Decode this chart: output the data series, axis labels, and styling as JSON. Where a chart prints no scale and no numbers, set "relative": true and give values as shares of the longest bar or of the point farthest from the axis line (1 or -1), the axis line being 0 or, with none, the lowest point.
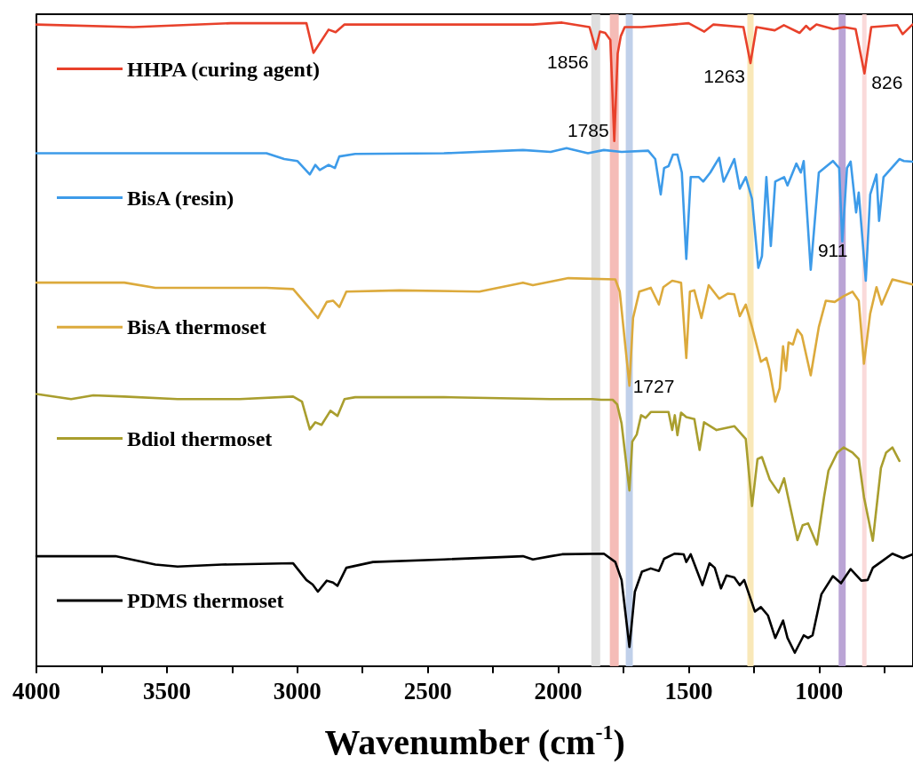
{
  "chart_data": {
    "type": "line",
    "relative": true,
    "xlabel": "Wavenumber (cm$^{-1}$)",
    "xlim": [
      4000,
      640
    ],
    "xticks": [
      4000,
      {
        "value": 3750,
        "label": null
      },
      3500,
      {
        "value": 3250,
        "label": null
      },
      3000,
      {
        "value": 2750,
        "label": null
      },
      2500,
      {
        "value": 2250,
        "label": null
      },
      2000,
      {
        "value": 1750,
        "label": null
      },
      1500,
      {
        "value": 1250,
        "label": null
      },
      1000,
      {
        "value": 750,
        "label": null
      }
    ],
    "tick_labels": "x",
    "grid": false,
    "legend": "left",
    "line_style": "solid",
    "marker": "none",
    "series": [
      {
        "name": "HHPA (curing agent)",
        "color": "#e8412b",
        "x": [
          4000,
          3629,
          3255,
          2965,
          2938,
          2880,
          2853,
          2819,
          2097,
          1985,
          1880,
          1856,
          1840,
          1820,
          1800,
          1791,
          1785,
          1779,
          1772,
          1760,
          1745,
          1680,
          1500,
          1440,
          1405,
          1290,
          1263,
          1240,
          1170,
          1135,
          1075,
          1050,
          1035,
          1010,
          945,
          905,
          860,
          826,
          800,
          700,
          680,
          642
        ],
        "values": [
          0.997,
          0.993,
          0.999,
          0.999,
          0.953,
          0.989,
          0.985,
          0.997,
          0.997,
          1.0,
          0.993,
          0.959,
          0.986,
          0.984,
          0.973,
          0.88,
          0.816,
          0.88,
          0.952,
          0.979,
          0.993,
          0.993,
          0.999,
          0.986,
          0.997,
          0.993,
          0.937,
          0.993,
          0.988,
          0.996,
          0.984,
          0.995,
          0.989,
          0.997,
          0.99,
          0.993,
          0.99,
          0.921,
          0.993,
          0.996,
          0.982,
          0.997
        ]
      },
      {
        "name": "BisA (resin)",
        "color": "#3d9be9",
        "x": [
          4000,
          3118,
          3050,
          3000,
          2952,
          2931,
          2914,
          2880,
          2856,
          2839,
          2778,
          2438,
          2135,
          2029,
          1968,
          1886,
          1825,
          1757,
          1655,
          1628,
          1607,
          1594,
          1577,
          1560,
          1543,
          1526,
          1509,
          1492,
          1461,
          1444,
          1417,
          1383,
          1366,
          1349,
          1325,
          1304,
          1281,
          1257,
          1233,
          1219,
          1202,
          1185,
          1168,
          1134,
          1121,
          1087,
          1070,
          1059,
          1032,
          1001,
          947,
          923,
          911,
          893,
          879,
          858,
          848,
          821,
          804,
          780,
          770,
          753,
          692,
          675,
          641
        ],
        "values": [
          0.797,
          0.797,
          0.788,
          0.785,
          0.764,
          0.779,
          0.771,
          0.779,
          0.774,
          0.792,
          0.796,
          0.797,
          0.802,
          0.799,
          0.805,
          0.797,
          0.802,
          0.799,
          0.801,
          0.788,
          0.733,
          0.774,
          0.777,
          0.795,
          0.795,
          0.767,
          0.633,
          0.76,
          0.76,
          0.753,
          0.767,
          0.79,
          0.753,
          0.767,
          0.788,
          0.742,
          0.76,
          0.726,
          0.619,
          0.637,
          0.76,
          0.653,
          0.753,
          0.76,
          0.747,
          0.781,
          0.767,
          0.785,
          0.616,
          0.767,
          0.785,
          0.774,
          0.66,
          0.774,
          0.784,
          0.705,
          0.736,
          0.599,
          0.733,
          0.764,
          0.692,
          0.76,
          0.788,
          0.785,
          0.784
        ]
      },
      {
        "name": "BisA thermoset",
        "color": "#dcaa3c",
        "x": [
          4000,
          3663,
          3544,
          3118,
          3016,
          2965,
          2921,
          2887,
          2863,
          2839,
          2812,
          2608,
          2302,
          2135,
          2097,
          1961,
          1781,
          1764,
          1727,
          1713,
          1689,
          1645,
          1614,
          1597,
          1563,
          1529,
          1509,
          1495,
          1478,
          1451,
          1423,
          1383,
          1349,
          1325,
          1304,
          1281,
          1257,
          1223,
          1202,
          1189,
          1168,
          1151,
          1138,
          1127,
          1117,
          1100,
          1083,
          1066,
          1032,
          1001,
          974,
          940,
          906,
          872,
          848,
          828,
          804,
          780,
          760,
          719,
          641
        ],
        "values": [
          0.596,
          0.596,
          0.588,
          0.588,
          0.586,
          0.562,
          0.541,
          0.566,
          0.568,
          0.558,
          0.582,
          0.584,
          0.582,
          0.596,
          0.592,
          0.603,
          0.601,
          0.582,
          0.436,
          0.541,
          0.582,
          0.588,
          0.562,
          0.589,
          0.599,
          0.596,
          0.479,
          0.582,
          0.584,
          0.541,
          0.592,
          0.571,
          0.579,
          0.578,
          0.544,
          0.562,
          0.527,
          0.473,
          0.479,
          0.459,
          0.411,
          0.432,
          0.497,
          0.459,
          0.503,
          0.5,
          0.523,
          0.514,
          0.452,
          0.527,
          0.568,
          0.566,
          0.575,
          0.582,
          0.568,
          0.47,
          0.548,
          0.589,
          0.562,
          0.601,
          0.593
        ]
      },
      {
        "name": "Bdiol thermoset",
        "color": "#a99e2e",
        "x": [
          4000,
          3867,
          3782,
          3663,
          3459,
          3221,
          3016,
          2982,
          2952,
          2931,
          2907,
          2873,
          2846,
          2819,
          2778,
          2438,
          2029,
          1869,
          1835,
          1791,
          1774,
          1757,
          1727,
          1716,
          1699,
          1682,
          1665,
          1645,
          1611,
          1577,
          1563,
          1553,
          1543,
          1529,
          1509,
          1478,
          1458,
          1441,
          1393,
          1325,
          1281,
          1257,
          1236,
          1219,
          1189,
          1155,
          1134,
          1121,
          1083,
          1063,
          1042,
          1008,
          981,
          964,
          930,
          906,
          872,
          848,
          828,
          794,
          763,
          743,
          719,
          692
        ],
        "values": [
          0.423,
          0.415,
          0.421,
          0.419,
          0.415,
          0.415,
          0.419,
          0.411,
          0.368,
          0.379,
          0.375,
          0.397,
          0.389,
          0.415,
          0.418,
          0.418,
          0.415,
          0.415,
          0.414,
          0.414,
          0.407,
          0.377,
          0.273,
          0.349,
          0.36,
          0.39,
          0.386,
          0.395,
          0.395,
          0.395,
          0.367,
          0.39,
          0.359,
          0.394,
          0.387,
          0.384,
          0.336,
          0.379,
          0.367,
          0.373,
          0.353,
          0.249,
          0.322,
          0.325,
          0.29,
          0.27,
          0.292,
          0.267,
          0.196,
          0.219,
          0.222,
          0.189,
          0.263,
          0.304,
          0.332,
          0.34,
          0.332,
          0.322,
          0.263,
          0.195,
          0.308,
          0.332,
          0.34,
          0.319
        ]
      },
      {
        "name": "PDMS thermoset",
        "color": "#000000",
        "x": [
          4000,
          3697,
          3544,
          3459,
          3289,
          3016,
          2965,
          2941,
          2921,
          2887,
          2863,
          2846,
          2812,
          2710,
          2438,
          2135,
          2097,
          2029,
          1985,
          1825,
          1781,
          1757,
          1727,
          1706,
          1679,
          1645,
          1614,
          1594,
          1553,
          1519,
          1509,
          1492,
          1447,
          1420,
          1400,
          1376,
          1355,
          1325,
          1304,
          1287,
          1246,
          1223,
          1196,
          1168,
          1138,
          1121,
          1093,
          1059,
          1042,
          1025,
          991,
          947,
          916,
          879,
          838,
          814,
          794,
          763,
          719,
          678,
          641
        ],
        "values": [
          0.171,
          0.171,
          0.158,
          0.155,
          0.158,
          0.16,
          0.134,
          0.127,
          0.116,
          0.133,
          0.13,
          0.125,
          0.153,
          0.162,
          0.166,
          0.171,
          0.166,
          0.171,
          0.174,
          0.175,
          0.162,
          0.134,
          0.03,
          0.116,
          0.147,
          0.152,
          0.148,
          0.167,
          0.175,
          0.174,
          0.162,
          0.174,
          0.126,
          0.16,
          0.153,
          0.121,
          0.141,
          0.138,
          0.126,
          0.134,
          0.085,
          0.092,
          0.079,
          0.044,
          0.071,
          0.044,
          0.021,
          0.048,
          0.044,
          0.048,
          0.112,
          0.14,
          0.129,
          0.151,
          0.133,
          0.134,
          0.153,
          0.162,
          0.175,
          0.168,
          0.174
        ]
      }
    ],
    "bands": [
      {
        "axis": "x",
        "from": 1873,
        "to": 1839,
        "color": "#dcdcdc"
      },
      {
        "axis": "x",
        "from": 1802,
        "to": 1768,
        "color": "#f4b5af"
      },
      {
        "axis": "x",
        "from": 1741,
        "to": 1714,
        "color": "#b9cbe8"
      },
      {
        "axis": "x",
        "from": 1275,
        "to": 1251,
        "color": "#f8e6b0"
      },
      {
        "axis": "x",
        "from": 925,
        "to": 898,
        "color": "#b39ad0"
      },
      {
        "axis": "x",
        "from": 835,
        "to": 818,
        "color": "#f9d6d6"
      }
    ],
    "annotations": [
      {
        "text": "1856",
        "x": 1856,
        "y": 0.959
      },
      {
        "text": "1785",
        "x": 1785,
        "y": 0.816
      },
      {
        "text": "1263",
        "x": 1263,
        "y": 0.937
      },
      {
        "text": "826",
        "x": 826,
        "y": 0.921
      },
      {
        "text": "911",
        "x": 911,
        "y": 0.66
      },
      {
        "text": "1727",
        "x": 1727,
        "y": 0.436
      }
    ]
  }
}
